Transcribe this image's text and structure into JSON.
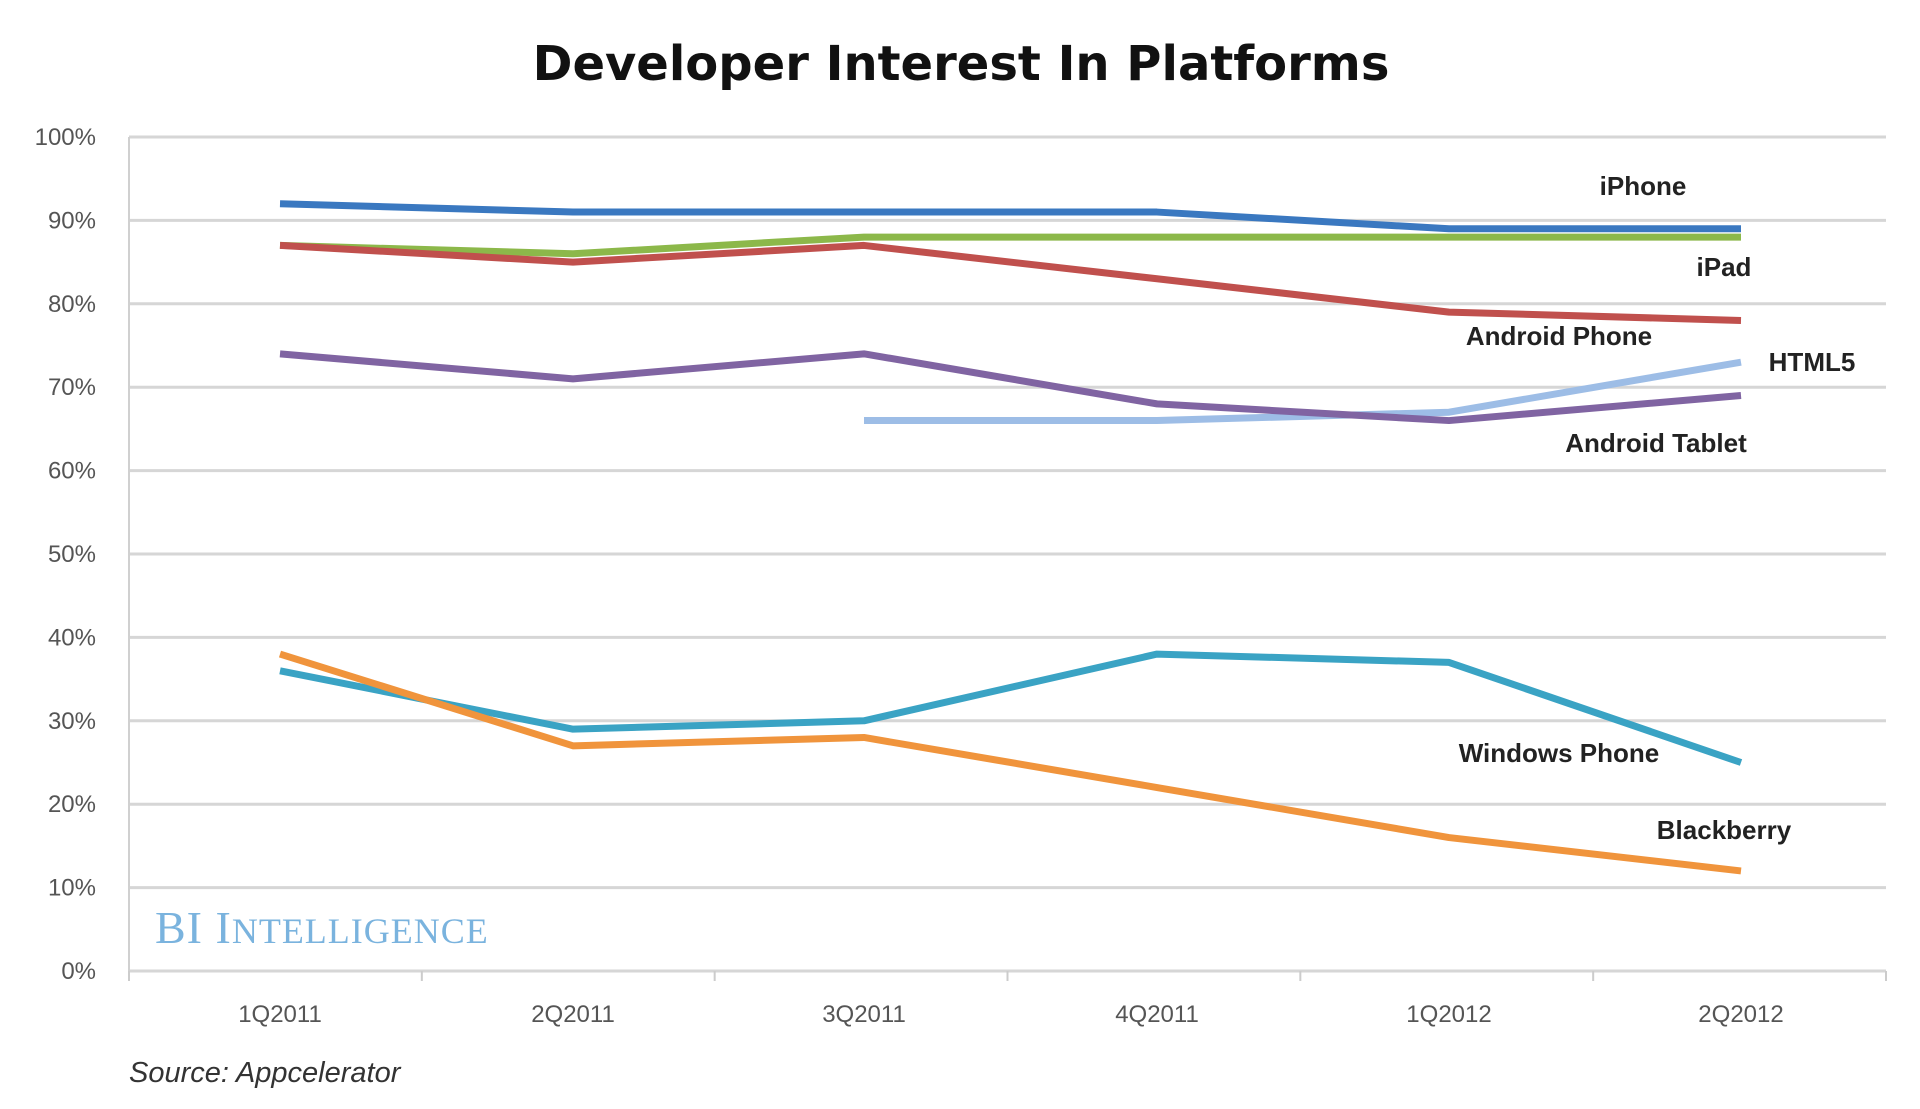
{
  "chart_data": {
    "type": "line",
    "title": "Developer Interest In Platforms",
    "xlabel": "",
    "ylabel": "",
    "categories": [
      "1Q2011",
      "2Q2011",
      "3Q2011",
      "4Q2011",
      "1Q2012",
      "2Q2012"
    ],
    "ylim": [
      0,
      100
    ],
    "yticks": [
      "0%",
      "10%",
      "20%",
      "30%",
      "40%",
      "50%",
      "60%",
      "70%",
      "80%",
      "90%",
      "100%"
    ],
    "grid": true,
    "legend": "inline labels at right end of lines",
    "series": [
      {
        "name": "iPhone",
        "color": "#3a78c0",
        "values": [
          92,
          91,
          91,
          91,
          89,
          89
        ]
      },
      {
        "name": "iPad",
        "color": "#8cb84a",
        "values": [
          87,
          86,
          88,
          88,
          88,
          88
        ]
      },
      {
        "name": "Android Phone",
        "color": "#c0504d",
        "values": [
          87,
          85,
          87,
          83,
          79,
          78
        ]
      },
      {
        "name": "HTML5",
        "color": "#9dbde6",
        "values": [
          null,
          null,
          66,
          66,
          67,
          73
        ]
      },
      {
        "name": "Android Tablet",
        "color": "#8064a2",
        "values": [
          74,
          71,
          74,
          68,
          66,
          69
        ]
      },
      {
        "name": "Windows Phone",
        "color": "#3aa3c4",
        "values": [
          36,
          29,
          30,
          38,
          37,
          25
        ]
      },
      {
        "name": "Blackberry",
        "color": "#f0943c",
        "values": [
          38,
          27,
          28,
          22,
          16,
          12
        ]
      }
    ],
    "source": "Source: Appcelerator",
    "watermark": "BI Intelligence"
  }
}
